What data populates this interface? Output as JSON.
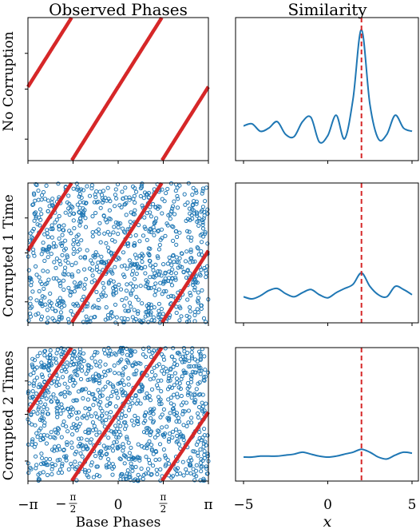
{
  "column_titles": {
    "left": "Observed Phases",
    "right": "Similarity"
  },
  "row_labels": [
    "No Corruption",
    "Corrupted 1 Time",
    "Corrupted 2 Times"
  ],
  "x_labels": {
    "left": "Base Phases",
    "right": "x"
  },
  "left_xticks": [
    {
      "value": -3.14159,
      "main": "−π",
      "sign": "",
      "frac_num": "",
      "frac_den": ""
    },
    {
      "value": -1.5708,
      "main": "",
      "sign": "−",
      "frac_num": "π",
      "frac_den": "2"
    },
    {
      "value": 0,
      "main": "0",
      "sign": "",
      "frac_num": "",
      "frac_den": ""
    },
    {
      "value": 1.5708,
      "main": "",
      "sign": "",
      "frac_num": "π",
      "frac_den": "2"
    },
    {
      "value": 3.14159,
      "main": "π",
      "sign": "",
      "frac_num": "",
      "frac_den": ""
    }
  ],
  "right_xticks": [
    {
      "value": -5,
      "label": "−5"
    },
    {
      "value": 0,
      "label": "0"
    },
    {
      "value": 5,
      "label": "5"
    }
  ],
  "colors": {
    "points": "#1f77b4",
    "line": "#d62728",
    "curve": "#1f77b4",
    "marker": "#d62728"
  },
  "chart_data": [
    {
      "type": "scatter",
      "panel": "observed-phases",
      "xlim": [
        -3.14159,
        3.14159
      ],
      "ylim": [
        -3.14159,
        3.14159
      ],
      "series": [
        {
          "values_description": "",
          "line_slope": 2,
          "line_offset": 0.1,
          "random_fraction": 0
        }
      ],
      "rows": [
        {
          "row": "No Corruption",
          "random_points": 0
        },
        {
          "row": "Corrupted 1 Time",
          "random_points": 900
        },
        {
          "row": "Corrupted 2 Times",
          "random_points": 1000
        }
      ]
    },
    {
      "type": "line",
      "panel": "similarity",
      "xlim": [
        -5.3,
        5.3
      ],
      "marker_x": 2,
      "rows": [
        {
          "row": "No Corruption",
          "x": [
            -5,
            -4.5,
            -4,
            -3.5,
            -3,
            -2.5,
            -2,
            -1.5,
            -1,
            -0.5,
            0,
            0.5,
            1,
            1.5,
            2,
            2.5,
            3,
            3.5,
            4,
            4.5,
            5
          ],
          "y": [
            0.1,
            0.12,
            0.05,
            0.08,
            0.14,
            0.02,
            0.0,
            0.14,
            0.18,
            -0.05,
            0.01,
            0.2,
            -0.02,
            0.35,
            1.0,
            0.3,
            -0.02,
            0.02,
            0.2,
            0.08,
            0.05
          ]
        },
        {
          "row": "Corrupted 1 Time",
          "x": [
            -5,
            -4.5,
            -4,
            -3.5,
            -3,
            -2.5,
            -2,
            -1.5,
            -1,
            -0.5,
            0,
            0.5,
            1,
            1.5,
            2,
            2.5,
            3,
            3.5,
            4,
            4.5,
            5
          ],
          "y": [
            0.02,
            0.0,
            0.03,
            0.08,
            0.1,
            0.05,
            0.02,
            0.06,
            0.09,
            0.04,
            0.01,
            0.06,
            0.1,
            0.14,
            0.25,
            0.12,
            0.04,
            0.02,
            0.12,
            0.09,
            0.04
          ]
        },
        {
          "row": "Corrupted 2 Times",
          "x": [
            -5,
            -4.5,
            -4,
            -3.5,
            -3,
            -2.5,
            -2,
            -1.5,
            -1,
            -0.5,
            0,
            0.5,
            1,
            1.5,
            2,
            2.5,
            3,
            3.5,
            4,
            4.5,
            5
          ],
          "y": [
            0.0,
            0.0,
            0.01,
            0.01,
            0.01,
            0.02,
            0.03,
            0.05,
            0.03,
            0.01,
            0.0,
            0.01,
            0.03,
            0.05,
            0.08,
            0.05,
            0.0,
            -0.02,
            0.02,
            0.05,
            0.04
          ]
        }
      ]
    }
  ]
}
